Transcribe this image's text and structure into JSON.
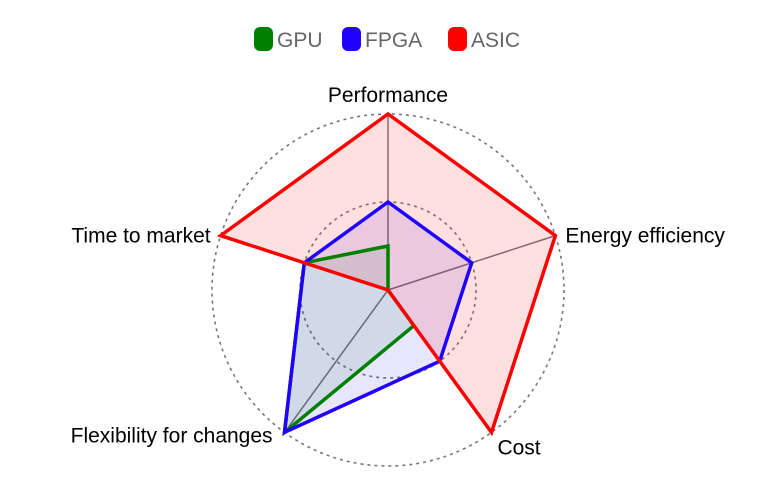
{
  "chart_data": {
    "type": "radar",
    "categories": [
      "Performance",
      "Energy efficiency",
      "Cost",
      "Flexibility for changes",
      "Time to market"
    ],
    "rmax": 2,
    "rings": [
      1,
      2
    ],
    "grid": "dashed circular rings",
    "legend_position": "top",
    "series": [
      {
        "name": "GPU",
        "color": "#008000",
        "fill": "rgba(0,128,0,0.10)",
        "values": [
          0.5,
          0,
          0.5,
          2,
          1
        ]
      },
      {
        "name": "FPGA",
        "color": "#2000ff",
        "fill": "rgba(32,0,255,0.10)",
        "values": [
          1,
          1,
          1,
          2,
          1
        ]
      },
      {
        "name": "ASIC",
        "color": "#ff0000",
        "fill": "rgba(255,0,0,0.12)",
        "values": [
          2,
          2,
          2,
          0,
          2
        ]
      }
    ]
  }
}
